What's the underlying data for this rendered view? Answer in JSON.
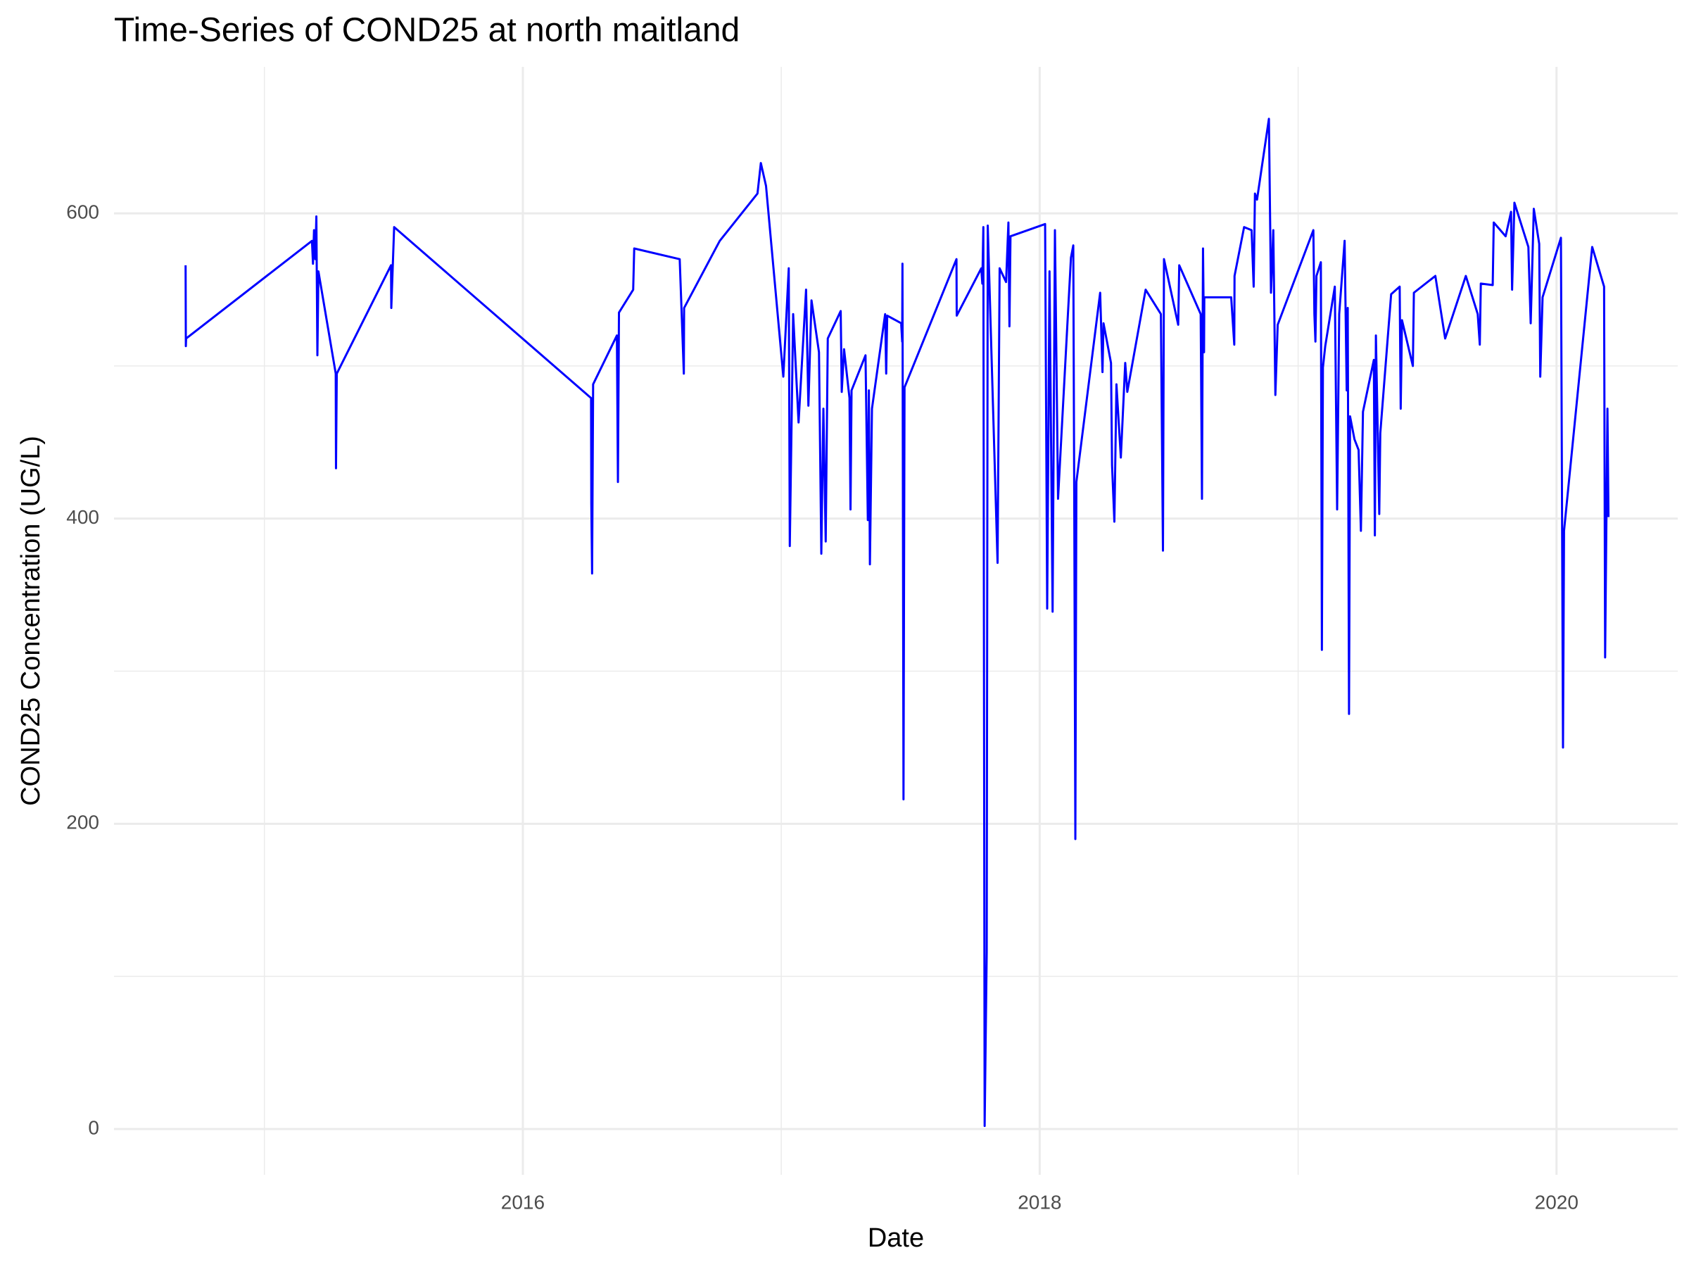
{
  "chart_data": {
    "type": "line",
    "title": "Time-Series of COND25 at north maitland",
    "x_label": "Date",
    "y_label": "COND25 Concentration (UG/L)",
    "color": "#0000ff",
    "grid": true,
    "xlim": [
      2014.418,
      2020.469
    ],
    "ylim": [
      -30,
      696
    ],
    "xticks": [
      2016,
      2018,
      2020
    ],
    "x_minor_ticks": [
      2015,
      2017,
      2019
    ],
    "yticks": [
      0,
      200,
      400,
      600
    ],
    "y_minor_ticks": [
      100,
      300,
      500
    ],
    "x": [
      2014.695,
      2014.696,
      2014.697,
      2015.184,
      2015.188,
      2015.192,
      2015.197,
      2015.201,
      2015.205,
      2015.209,
      2015.276,
      2015.277,
      2015.28,
      2015.49,
      2015.491,
      2015.502,
      2016.264,
      2016.265,
      2016.268,
      2016.272,
      2016.364,
      2016.368,
      2016.372,
      2016.427,
      2016.431,
      2016.607,
      2016.623,
      2016.624,
      2016.762,
      2016.908,
      2016.921,
      2016.941,
      2017.008,
      2017.029,
      2017.033,
      2017.046,
      2017.067,
      2017.096,
      2017.105,
      2017.117,
      2017.146,
      2017.155,
      2017.163,
      2017.172,
      2017.18,
      2017.23,
      2017.234,
      2017.243,
      2017.264,
      2017.268,
      2017.272,
      2017.326,
      2017.335,
      2017.339,
      2017.343,
      2017.351,
      2017.402,
      2017.406,
      2017.41,
      2017.464,
      2017.468,
      2017.469,
      2017.473,
      2017.477,
      2017.678,
      2017.679,
      2017.774,
      2017.778,
      2017.782,
      2017.787,
      2017.795,
      2017.799,
      2017.837,
      2017.845,
      2017.87,
      2017.879,
      2017.883,
      2017.887,
      2018.021,
      2018.029,
      2018.038,
      2018.05,
      2018.059,
      2018.071,
      2018.121,
      2018.13,
      2018.134,
      2018.138,
      2018.142,
      2018.234,
      2018.243,
      2018.247,
      2018.276,
      2018.28,
      2018.289,
      2018.297,
      2018.314,
      2018.331,
      2018.339,
      2018.41,
      2018.469,
      2018.477,
      2018.481,
      2018.536,
      2018.54,
      2018.623,
      2018.628,
      2018.632,
      2018.636,
      2018.637,
      2018.741,
      2018.753,
      2018.754,
      2018.791,
      2018.82,
      2018.828,
      2018.833,
      2018.841,
      2018.887,
      2018.895,
      2018.904,
      2018.912,
      2018.921,
      2019.059,
      2019.063,
      2019.067,
      2019.071,
      2019.088,
      2019.092,
      2019.096,
      2019.105,
      2019.142,
      2019.151,
      2019.159,
      2019.18,
      2019.188,
      2019.192,
      2019.197,
      2019.201,
      2019.218,
      2019.234,
      2019.243,
      2019.251,
      2019.293,
      2019.297,
      2019.301,
      2019.314,
      2019.318,
      2019.36,
      2019.393,
      2019.397,
      2019.402,
      2019.444,
      2019.448,
      2019.531,
      2019.569,
      2019.649,
      2019.695,
      2019.703,
      2019.707,
      2019.753,
      2019.757,
      2019.803,
      2019.824,
      2019.828,
      2019.837,
      2019.891,
      2019.9,
      2019.912,
      2019.933,
      2019.937,
      2019.946,
      2020.017,
      2020.025,
      2020.029,
      2020.138,
      2020.184,
      2020.188,
      2020.197,
      2020.201
    ],
    "values": [
      566,
      513,
      518,
      582,
      567,
      589,
      570,
      598,
      507,
      562,
      495,
      433,
      495,
      566,
      538,
      591,
      479,
      410,
      364,
      488,
      520,
      424,
      535,
      550,
      577,
      570,
      495,
      538,
      582,
      613,
      633,
      618,
      493,
      564,
      382,
      534,
      463,
      550,
      474,
      543,
      509,
      377,
      472,
      385,
      518,
      536,
      483,
      511,
      479,
      406,
      484,
      507,
      399,
      484,
      370,
      472,
      534,
      495,
      533,
      528,
      516,
      567,
      216,
      486,
      570,
      533,
      564,
      554,
      591,
      2,
      116,
      592,
      371,
      564,
      555,
      594,
      526,
      585,
      593,
      341,
      562,
      339,
      589,
      413,
      571,
      579,
      399,
      190,
      424,
      548,
      496,
      528,
      502,
      435,
      398,
      488,
      440,
      502,
      483,
      550,
      534,
      379,
      570,
      527,
      566,
      534,
      413,
      577,
      509,
      545,
      545,
      514,
      559,
      591,
      589,
      552,
      613,
      609,
      662,
      548,
      589,
      481,
      527,
      589,
      534,
      516,
      559,
      568,
      314,
      499,
      513,
      552,
      406,
      534,
      582,
      484,
      538,
      272,
      467,
      452,
      445,
      392,
      470,
      504,
      389,
      520,
      403,
      456,
      547,
      552,
      472,
      530,
      500,
      548,
      559,
      518,
      559,
      534,
      514,
      554,
      553,
      594,
      585,
      601,
      550,
      607,
      578,
      528,
      603,
      580,
      493,
      545,
      584,
      250,
      392,
      578,
      552,
      309,
      472,
      401
    ]
  }
}
